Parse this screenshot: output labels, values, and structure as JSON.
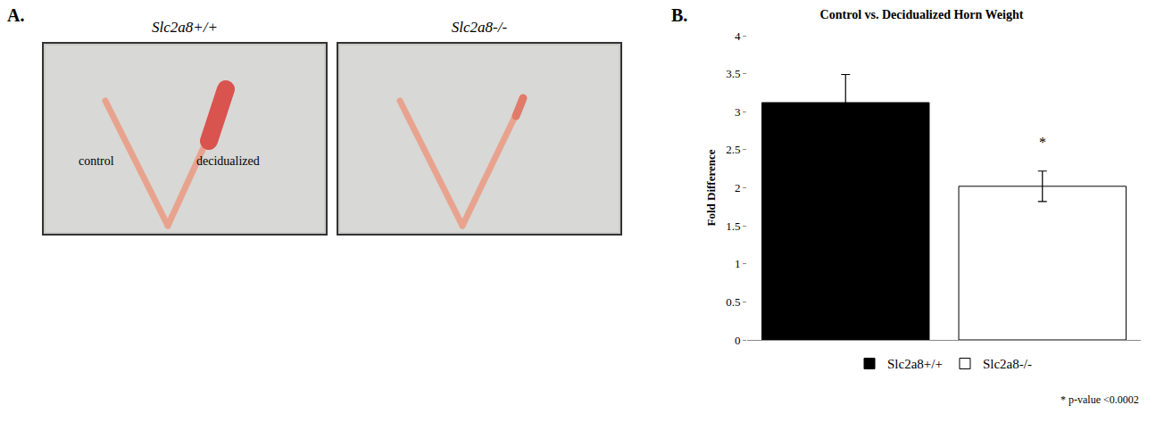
{
  "panel_a": {
    "letter": "A.",
    "images": [
      {
        "title": "Slc2a8+/+",
        "labels": [
          "control",
          "decidualized"
        ]
      },
      {
        "title": "Slc2a8-/-",
        "labels": []
      }
    ]
  },
  "chart_data": {
    "letter": "B.",
    "type": "bar",
    "title": "Control vs. Decidualized Horn Weight",
    "y_label": "Fold Difference",
    "categories": [
      "Slc2a8+/+",
      "Slc2a8-/-"
    ],
    "values": [
      3.12,
      2.02
    ],
    "errors": [
      0.37,
      0.2
    ],
    "colors": [
      "#000000",
      "#ffffff"
    ],
    "ylim": [
      0,
      4
    ],
    "yticks": [
      0,
      0.5,
      1,
      1.5,
      2,
      2.5,
      3,
      3.5,
      4
    ],
    "tick_labels": "y",
    "legend": "bottom",
    "annotations": [
      {
        "text": "*",
        "category": "Slc2a8-/-",
        "y": 2.6
      }
    ],
    "footnote": "* p-value <0.0002"
  }
}
